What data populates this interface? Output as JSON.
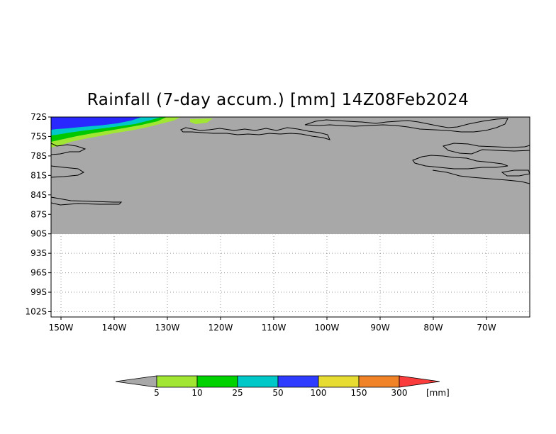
{
  "title": "Rainfall (7-day accum.) [mm] 14Z08Feb2024",
  "map": {
    "lat_labels": [
      "72S",
      "75S",
      "78S",
      "81S",
      "84S",
      "87S",
      "90S",
      "93S",
      "96S",
      "99S",
      "102S"
    ],
    "lon_labels": [
      "150W",
      "140W",
      "130W",
      "120W",
      "110W",
      "100W",
      "90W",
      "80W",
      "70W"
    ],
    "lat_range": [
      -102,
      -72
    ],
    "lon_range": [
      -150,
      -60
    ],
    "data_extent_south": "90S",
    "no_rain_color": "#a8a8a8",
    "rain_bands": [
      {
        "range": "5-10",
        "color": "#a0e632"
      },
      {
        "range": "10-25",
        "color": "#00c800"
      },
      {
        "range": "25-50",
        "color": "#00c8c8"
      },
      {
        "range": "50-100",
        "color": "#2828ff"
      }
    ]
  },
  "colorbar": {
    "levels": [
      "5",
      "10",
      "25",
      "50",
      "100",
      "150",
      "300"
    ],
    "unit": "[mm]",
    "colors": {
      "below": "#a8a8a8",
      "5_10": "#a0e632",
      "10_25": "#00d200",
      "25_50": "#00c8c8",
      "50_100": "#2d3cff",
      "100_150": "#e6dc32",
      "150_300": "#f08228",
      "above": "#fa3c3c"
    }
  }
}
